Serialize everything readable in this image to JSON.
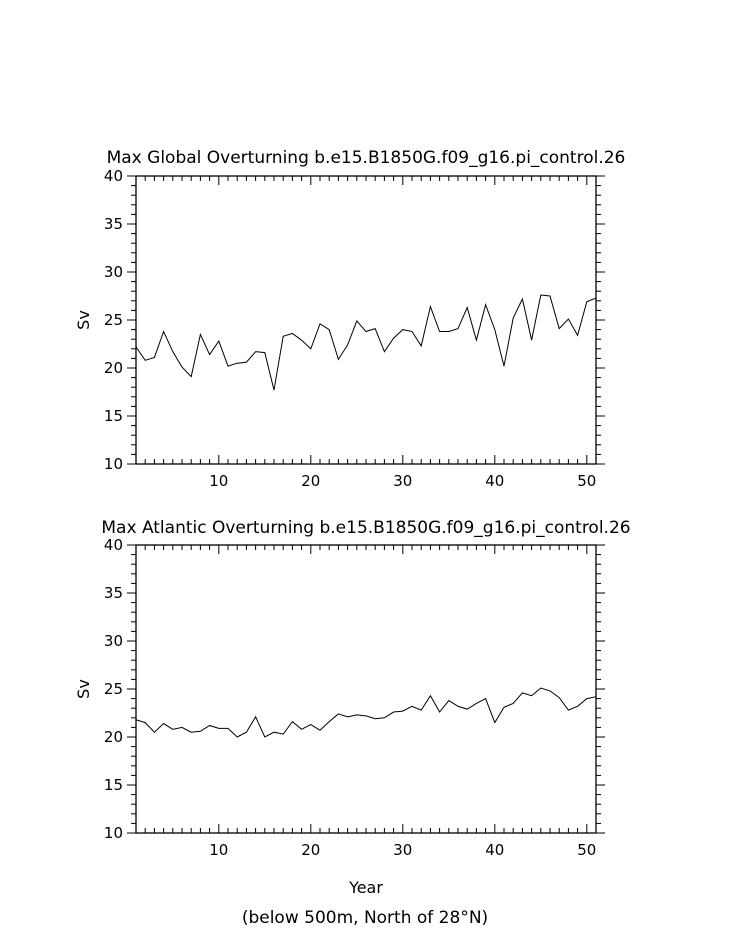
{
  "chart_data": [
    {
      "type": "line",
      "title": "Max Global Overturning b.e15.B1850G.f09_g16.pi_control.26",
      "xlabel": "",
      "ylabel": "Sv",
      "xlim": [
        1,
        51
      ],
      "ylim": [
        10,
        40
      ],
      "x_ticks": [
        10,
        20,
        30,
        40,
        50
      ],
      "y_ticks": [
        10,
        15,
        20,
        25,
        30,
        35,
        40
      ],
      "grid": false,
      "series": [
        {
          "x": [
            1,
            2,
            3,
            4,
            5,
            6,
            7,
            8,
            9,
            10,
            11,
            12,
            13,
            14,
            15,
            16,
            17,
            18,
            19,
            20,
            21,
            22,
            23,
            24,
            25,
            26,
            27,
            28,
            29,
            30,
            31,
            32,
            33,
            34,
            35,
            36,
            37,
            38,
            39,
            40,
            41,
            42,
            43,
            44,
            45,
            46,
            47,
            48,
            49,
            50,
            51
          ],
          "values": [
            22.2,
            20.8,
            21.1,
            23.8,
            21.7,
            20.1,
            19.1,
            23.5,
            21.4,
            22.8,
            20.2,
            20.5,
            20.6,
            21.7,
            21.6,
            17.7,
            23.3,
            23.6,
            22.9,
            22.0,
            24.6,
            24.0,
            20.9,
            22.4,
            24.9,
            23.8,
            24.1,
            21.7,
            23.1,
            24.0,
            23.8,
            22.3,
            26.4,
            23.8,
            23.8,
            24.1,
            26.3,
            22.9,
            26.6,
            24.0,
            20.2,
            25.2,
            27.2,
            22.9,
            27.6,
            27.5,
            24.1,
            25.1,
            23.4,
            26.9,
            27.3
          ]
        }
      ]
    },
    {
      "type": "line",
      "title": "Max Atlantic Overturning b.e15.B1850G.f09_g16.pi_control.26",
      "xlabel": "Year",
      "ylabel": "Sv",
      "xlim": [
        1,
        51
      ],
      "ylim": [
        10,
        40
      ],
      "x_ticks": [
        10,
        20,
        30,
        40,
        50
      ],
      "y_ticks": [
        10,
        15,
        20,
        25,
        30,
        35,
        40
      ],
      "grid": false,
      "series": [
        {
          "x": [
            1,
            2,
            3,
            4,
            5,
            6,
            7,
            8,
            9,
            10,
            11,
            12,
            13,
            14,
            15,
            16,
            17,
            18,
            19,
            20,
            21,
            22,
            23,
            24,
            25,
            26,
            27,
            28,
            29,
            30,
            31,
            32,
            33,
            34,
            35,
            36,
            37,
            38,
            39,
            40,
            41,
            42,
            43,
            44,
            45,
            46,
            47,
            48,
            49,
            50,
            51
          ],
          "values": [
            21.8,
            21.5,
            20.5,
            21.4,
            20.8,
            21.0,
            20.5,
            20.6,
            21.2,
            20.9,
            20.9,
            20.0,
            20.5,
            22.1,
            20.0,
            20.5,
            20.3,
            21.6,
            20.8,
            21.3,
            20.7,
            21.6,
            22.4,
            22.1,
            22.3,
            22.2,
            21.9,
            22.0,
            22.6,
            22.7,
            23.2,
            22.8,
            24.3,
            22.6,
            23.8,
            23.2,
            22.9,
            23.5,
            24.0,
            21.5,
            23.1,
            23.5,
            24.6,
            24.3,
            25.1,
            24.8,
            24.1,
            22.8,
            23.2,
            24.0,
            24.2
          ]
        }
      ]
    }
  ],
  "footnote": "(below 500m, North of 28°N)"
}
